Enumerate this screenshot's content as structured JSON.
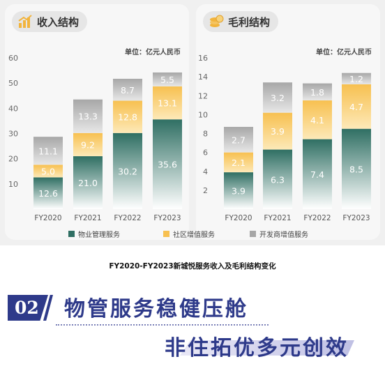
{
  "caption": "FY2020-FY2023新城悦服务收入及毛利结构变化",
  "badge": "02",
  "headline1": "物管服务稳健压舱",
  "headline2": "非住拓优多元创效",
  "colors": {
    "property": "#3a7a6e",
    "community": "#f7c85a",
    "developer": "#b8b8b8"
  },
  "chart_data": [
    {
      "type": "bar",
      "stacked": true,
      "title": "收入结构",
      "unit": "单位：亿元人民币",
      "categories": [
        "FY2020",
        "FY2021",
        "FY2022",
        "FY2023"
      ],
      "ylim": [
        0,
        60
      ],
      "yticks": [
        10,
        20,
        30,
        40,
        50,
        60
      ],
      "series": [
        {
          "name": "物业管理服务",
          "values": [
            12.6,
            21.0,
            30.2,
            35.6
          ],
          "labels": [
            "12.6",
            "21.0",
            "30.2",
            "35.6"
          ]
        },
        {
          "name": "社区增值服务",
          "values": [
            5.0,
            9.2,
            12.8,
            13.1
          ],
          "labels": [
            "5.0",
            "9.2",
            "12.8",
            "13.1"
          ]
        },
        {
          "name": "开发商增值服务",
          "values": [
            11.1,
            13.3,
            8.7,
            5.5
          ],
          "labels": [
            "11.1",
            "13.3",
            "8.7",
            "5.5"
          ]
        }
      ]
    },
    {
      "type": "bar",
      "stacked": true,
      "title": "毛利结构",
      "unit": "单位：亿元人民币",
      "categories": [
        "FY2020",
        "FY2021",
        "FY2022",
        "FY2023"
      ],
      "ylim": [
        0,
        16
      ],
      "yticks": [
        2,
        4,
        6,
        8,
        10,
        12,
        14,
        16
      ],
      "series": [
        {
          "name": "物业管理服务",
          "values": [
            3.9,
            6.3,
            7.4,
            8.5
          ],
          "labels": [
            "3.9",
            "6.3",
            "7.4",
            "8.5"
          ]
        },
        {
          "name": "社区增值服务",
          "values": [
            2.1,
            3.9,
            4.1,
            4.7
          ],
          "labels": [
            "2.1",
            "3.9",
            "4.1",
            "4.7"
          ]
        },
        {
          "name": "开发商增值服务",
          "values": [
            2.7,
            3.2,
            1.8,
            1.2
          ],
          "labels": [
            "2.7",
            "3.2",
            "1.8",
            "1.2"
          ]
        }
      ]
    }
  ],
  "legend": [
    "物业管理服务",
    "社区增值服务",
    "开发商增值服务"
  ]
}
